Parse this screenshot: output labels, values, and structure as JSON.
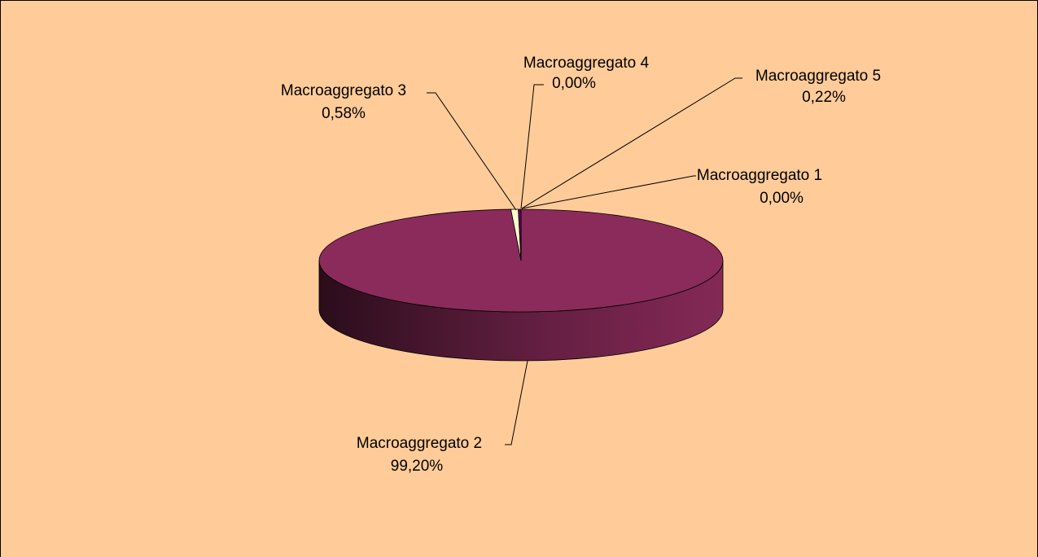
{
  "chart_data": {
    "type": "pie",
    "categories": [
      "Macroaggregato 1",
      "Macroaggregato 2",
      "Macroaggregato 3",
      "Macroaggregato 4",
      "Macroaggregato 5"
    ],
    "values": [
      0,
      99.2,
      0.58,
      0,
      0.22
    ],
    "value_labels": [
      "0,00%",
      "99,20%",
      "0,58%",
      "0,00%",
      "0,22%"
    ],
    "colors": [
      "#9999ff",
      "#8b2b5b",
      "#ffffcc",
      "#ccffff",
      "#660066"
    ]
  }
}
